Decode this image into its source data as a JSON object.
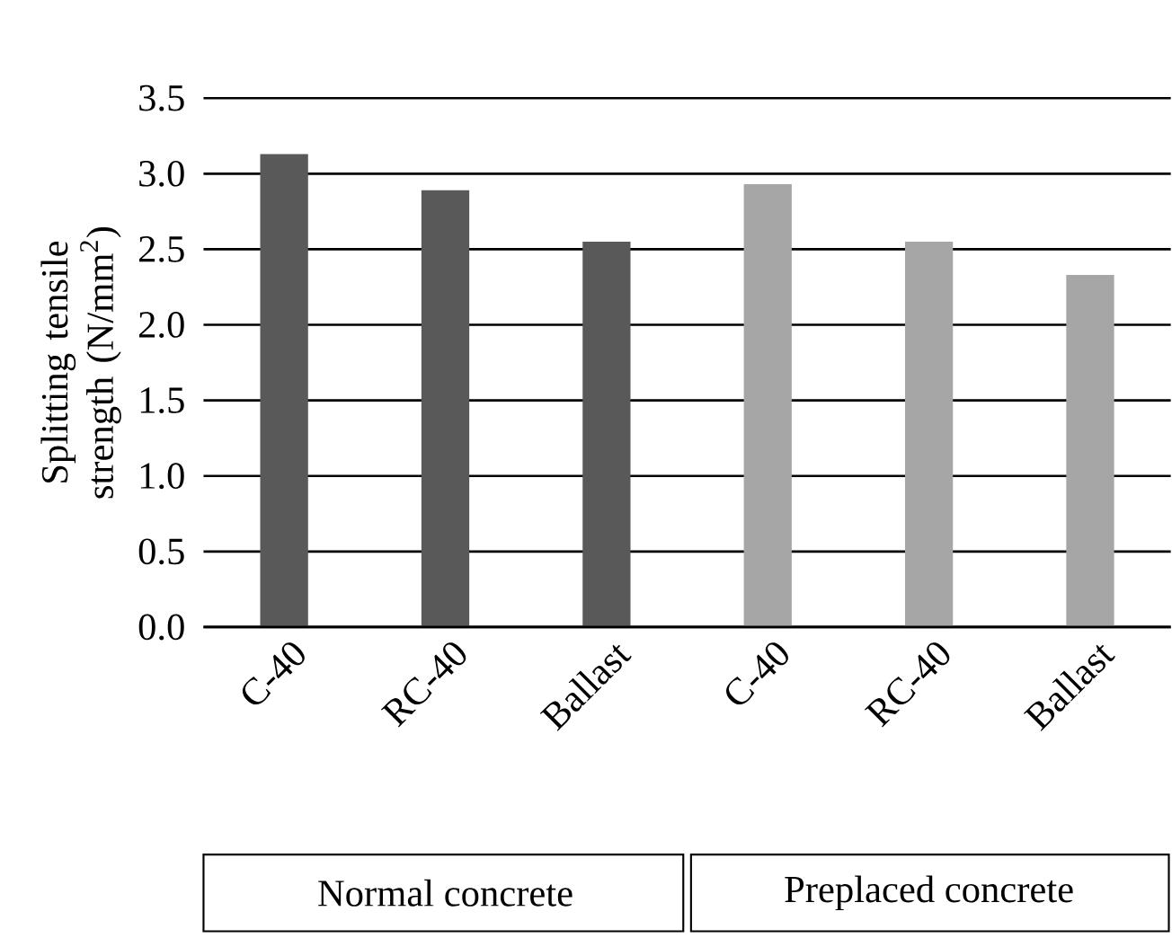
{
  "chart_data": {
    "type": "bar",
    "categories": [
      "C-40",
      "RC-40",
      "Ballast",
      "C-40",
      "RC-40",
      "Ballast"
    ],
    "values": [
      3.13,
      2.89,
      2.55,
      2.93,
      2.55,
      2.33
    ],
    "colors": [
      "#595959",
      "#595959",
      "#595959",
      "#a6a6a6",
      "#a6a6a6",
      "#a6a6a6"
    ],
    "ylabel": "Splitting tensile strength (N/mm$^{2}$)",
    "ylim": [
      0,
      3.5
    ],
    "yticks": [
      {
        "value": 0,
        "label": "0.0"
      },
      {
        "value": 0.5,
        "label": "0.5"
      },
      {
        "value": 1,
        "label": "1.0"
      },
      {
        "value": 1.5,
        "label": "1.5"
      },
      {
        "value": 2,
        "label": "2.0"
      },
      {
        "value": 2.5,
        "label": "2.5"
      },
      {
        "value": 3,
        "label": "3.0"
      },
      {
        "value": 3.5,
        "label": "3.5"
      }
    ],
    "grid": "y",
    "annotations": [
      "Normal concrete",
      "Preplaced concrete"
    ]
  }
}
